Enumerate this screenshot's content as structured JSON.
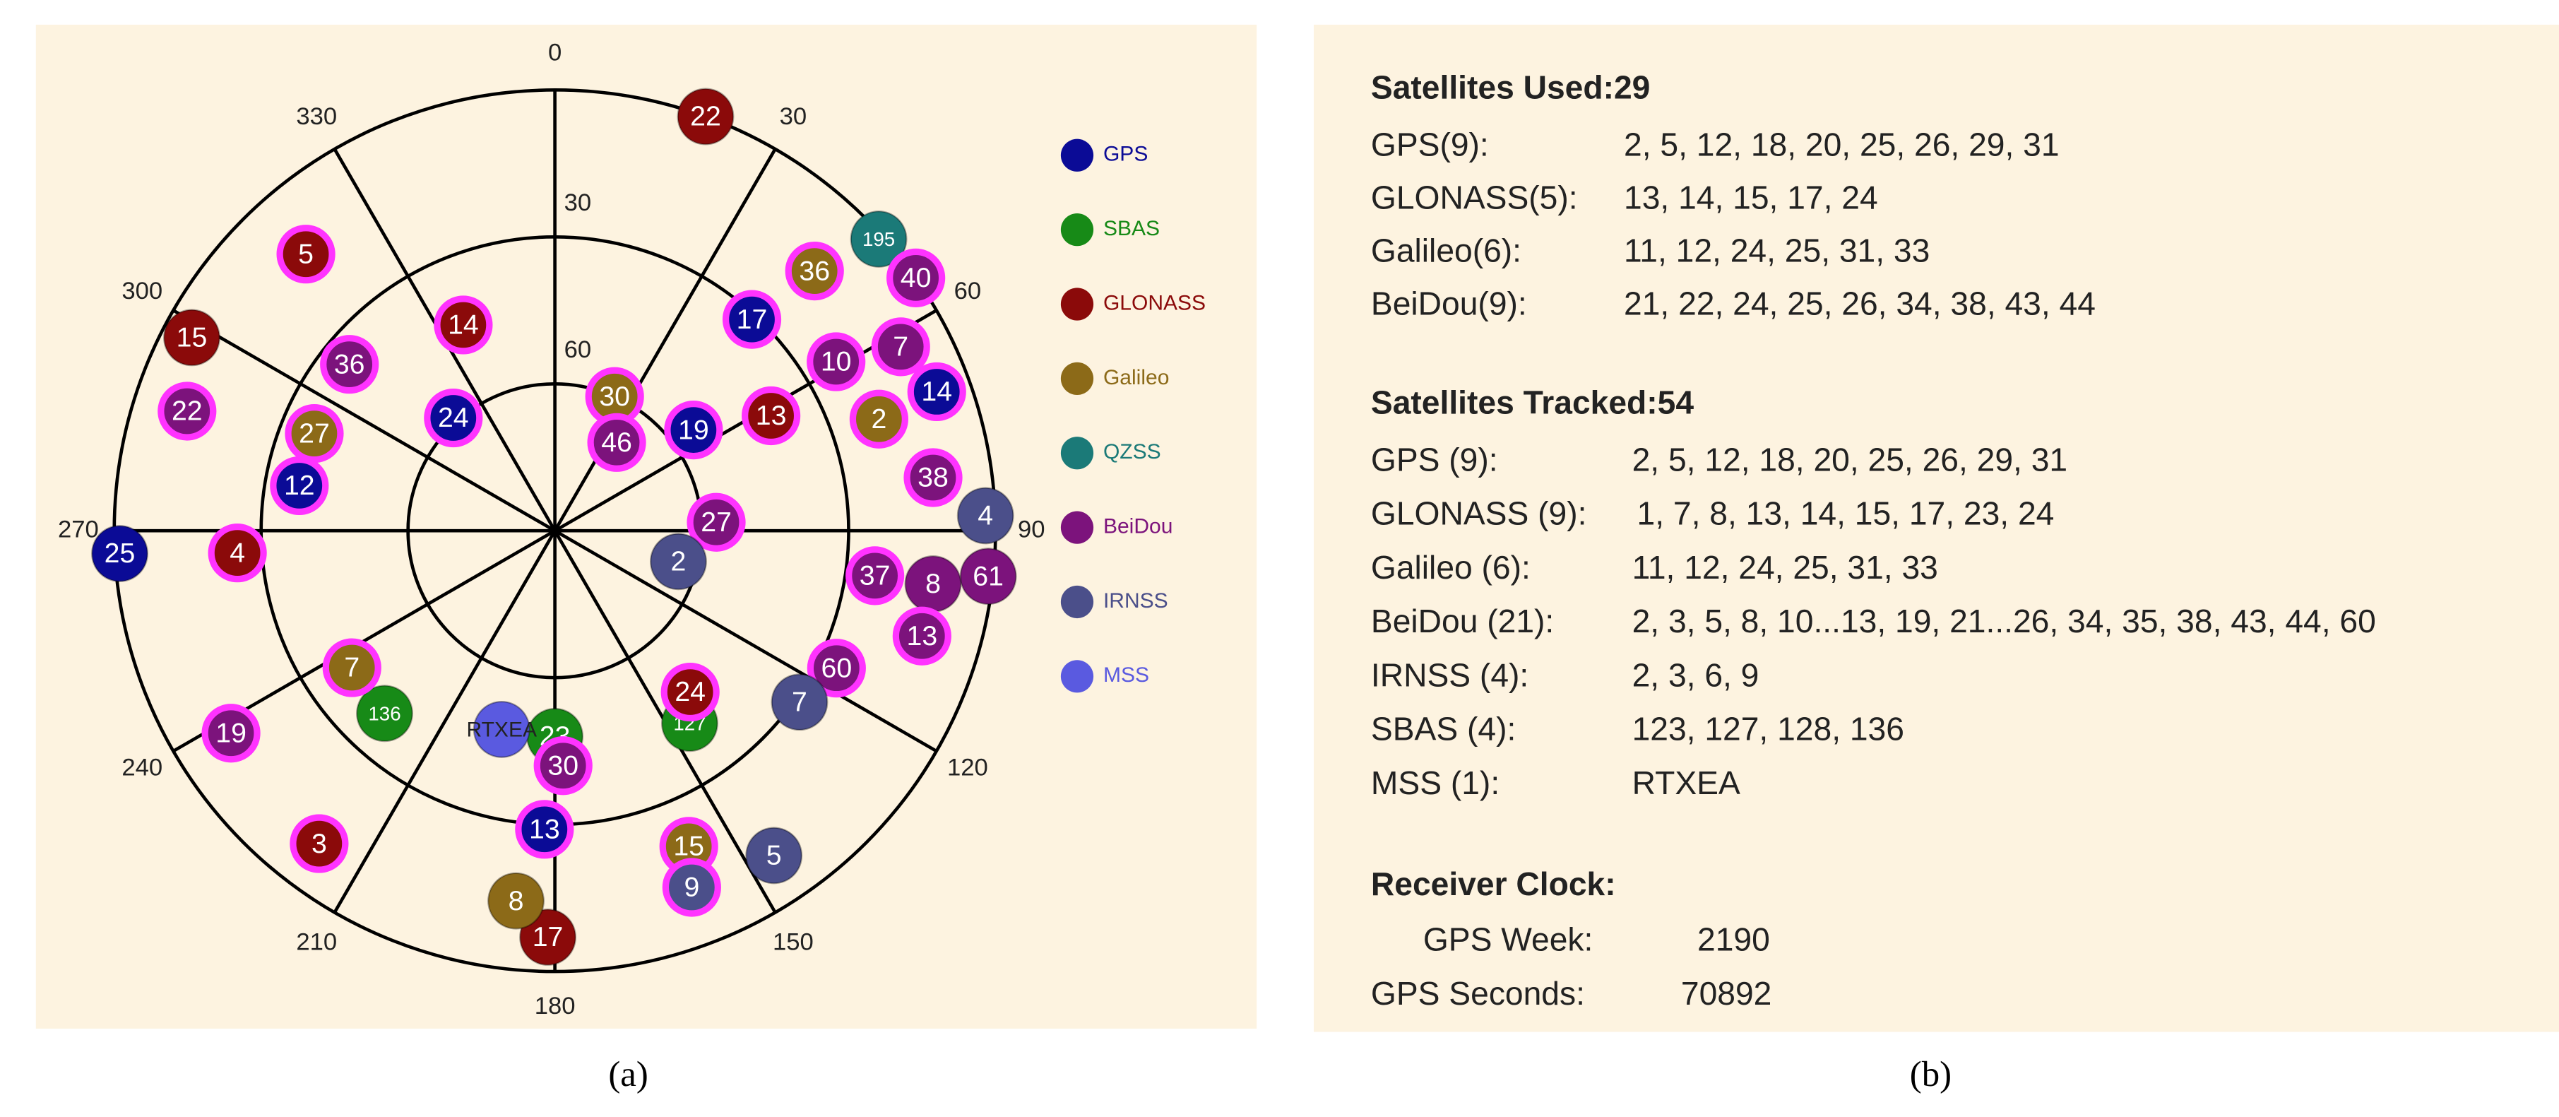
{
  "chart_data": {
    "type": "skyplot",
    "azimuth_ticks": [
      0,
      30,
      60,
      90,
      120,
      150,
      180,
      210,
      240,
      270,
      300,
      330
    ],
    "elevation_lim": [
      90,
      0
    ],
    "elevation_ticks": [
      30,
      60
    ],
    "used_ring_color": "#ff33ff",
    "series": [
      {
        "name": "GPS",
        "color": "#0b0b96",
        "labels": [
          "17",
          "14",
          "19",
          "24",
          "12",
          "25",
          "13"
        ],
        "azimuth": [
          43,
          70,
          54,
          318,
          280,
          267,
          182
        ],
        "elevation": [
          31,
          7,
          55,
          59,
          37,
          1,
          29
        ],
        "used": [
          true,
          true,
          true,
          true,
          true,
          false,
          true
        ]
      },
      {
        "name": "SBAS",
        "color": "#178a17",
        "labels": [
          "127",
          "23",
          "136"
        ],
        "azimuth": [
          145,
          180,
          223
        ],
        "elevation": [
          42,
          48,
          39
        ],
        "used": [
          false,
          false,
          false
        ]
      },
      {
        "name": "GLONASS",
        "color": "#8b0a0a",
        "labels": [
          "22",
          "13",
          "24",
          "17",
          "3",
          "4",
          "15",
          "14",
          "5"
        ],
        "azimuth": [
          20,
          62,
          140,
          181,
          217,
          266,
          298,
          336,
          318
        ],
        "elevation": [
          0,
          40,
          47,
          7,
          10,
          25,
          6,
          44,
          14
        ],
        "used": [
          false,
          true,
          true,
          false,
          true,
          true,
          false,
          true,
          true
        ]
      },
      {
        "name": "Galileo",
        "color": "#8c6a18",
        "labels": [
          "36",
          "2",
          "30",
          "15",
          "8",
          "7",
          "27"
        ],
        "azimuth": [
          45,
          71,
          24,
          157,
          186,
          236,
          292
        ],
        "elevation": [
          15,
          20,
          60,
          20,
          14,
          40,
          37
        ],
        "used": [
          true,
          true,
          true,
          true,
          false,
          true,
          true
        ]
      },
      {
        "name": "QZSS",
        "color": "#1b7a78",
        "labels": [
          "195"
        ],
        "azimuth": [
          48
        ],
        "elevation": [
          1
        ],
        "used": [
          false
        ]
      },
      {
        "name": "BeiDou",
        "color": "#7c137c",
        "labels": [
          "40",
          "10",
          "7",
          "46",
          "38",
          "61",
          "27",
          "37",
          "8",
          "13",
          "60",
          "19",
          "22",
          "36",
          "30"
        ],
        "azimuth": [
          55,
          59,
          62,
          35,
          82,
          96,
          87,
          98,
          98,
          106,
          116,
          238,
          288,
          309,
          178
        ],
        "elevation": [
          0,
          23,
          10,
          68,
          12,
          1,
          57,
          24,
          12,
          12,
          26,
          12,
          11,
          36,
          42
        ],
        "used": [
          true,
          true,
          true,
          true,
          true,
          false,
          true,
          true,
          false,
          true,
          true,
          true,
          true,
          true,
          true
        ]
      },
      {
        "name": "IRNSS",
        "color": "#4b4f8a",
        "labels": [
          "4",
          "2",
          "7",
          "5",
          "9"
        ],
        "azimuth": [
          88,
          104,
          125,
          146,
          159
        ],
        "elevation": [
          2,
          64,
          29,
          10,
          12
        ],
        "used": [
          false,
          false,
          false,
          false,
          true
        ]
      },
      {
        "name": "MSS",
        "color": "#5a5ae0",
        "labels": [
          "RTXEA"
        ],
        "azimuth": [
          195
        ],
        "elevation": [
          48
        ],
        "used": [
          false
        ]
      }
    ]
  },
  "status_panel": {
    "used_title": "Satellites Used:29",
    "used_rows": [
      [
        "GPS(9):",
        "2, 5, 12, 18, 20, 25, 26, 29, 31"
      ],
      [
        "GLONASS(5):",
        "13, 14, 15, 17, 24"
      ],
      [
        "Galileo(6):",
        "11, 12, 24, 25, 31, 33"
      ],
      [
        "BeiDou(9):",
        "21, 22, 24, 25, 26, 34, 38, 43, 44"
      ]
    ],
    "tracked_title": "Satellites Tracked:54",
    "tracked_rows": [
      [
        "GPS (9):",
        "2, 5, 12, 18, 20, 25, 26, 29, 31"
      ],
      [
        "GLONASS (9):",
        "1, 7, 8, 13, 14, 15, 17, 23, 24"
      ],
      [
        "Galileo (6):",
        "11, 12, 24, 25, 31, 33"
      ],
      [
        "BeiDou (21):",
        "2, 3, 5, 8, 10...13, 19, 21...26, 34, 35, 38, 43, 44, 60"
      ],
      [
        "IRNSS (4):",
        "2, 3, 6, 9"
      ],
      [
        "SBAS (4):",
        "123, 127, 128, 136"
      ],
      [
        "MSS (1):",
        "RTXEA"
      ]
    ],
    "clock_title": "Receiver Clock:",
    "clock_rows": [
      [
        "GPS Week:",
        "2190"
      ],
      [
        "GPS Seconds:",
        "70892"
      ]
    ]
  },
  "captions": [
    "(a)",
    "(b)"
  ]
}
